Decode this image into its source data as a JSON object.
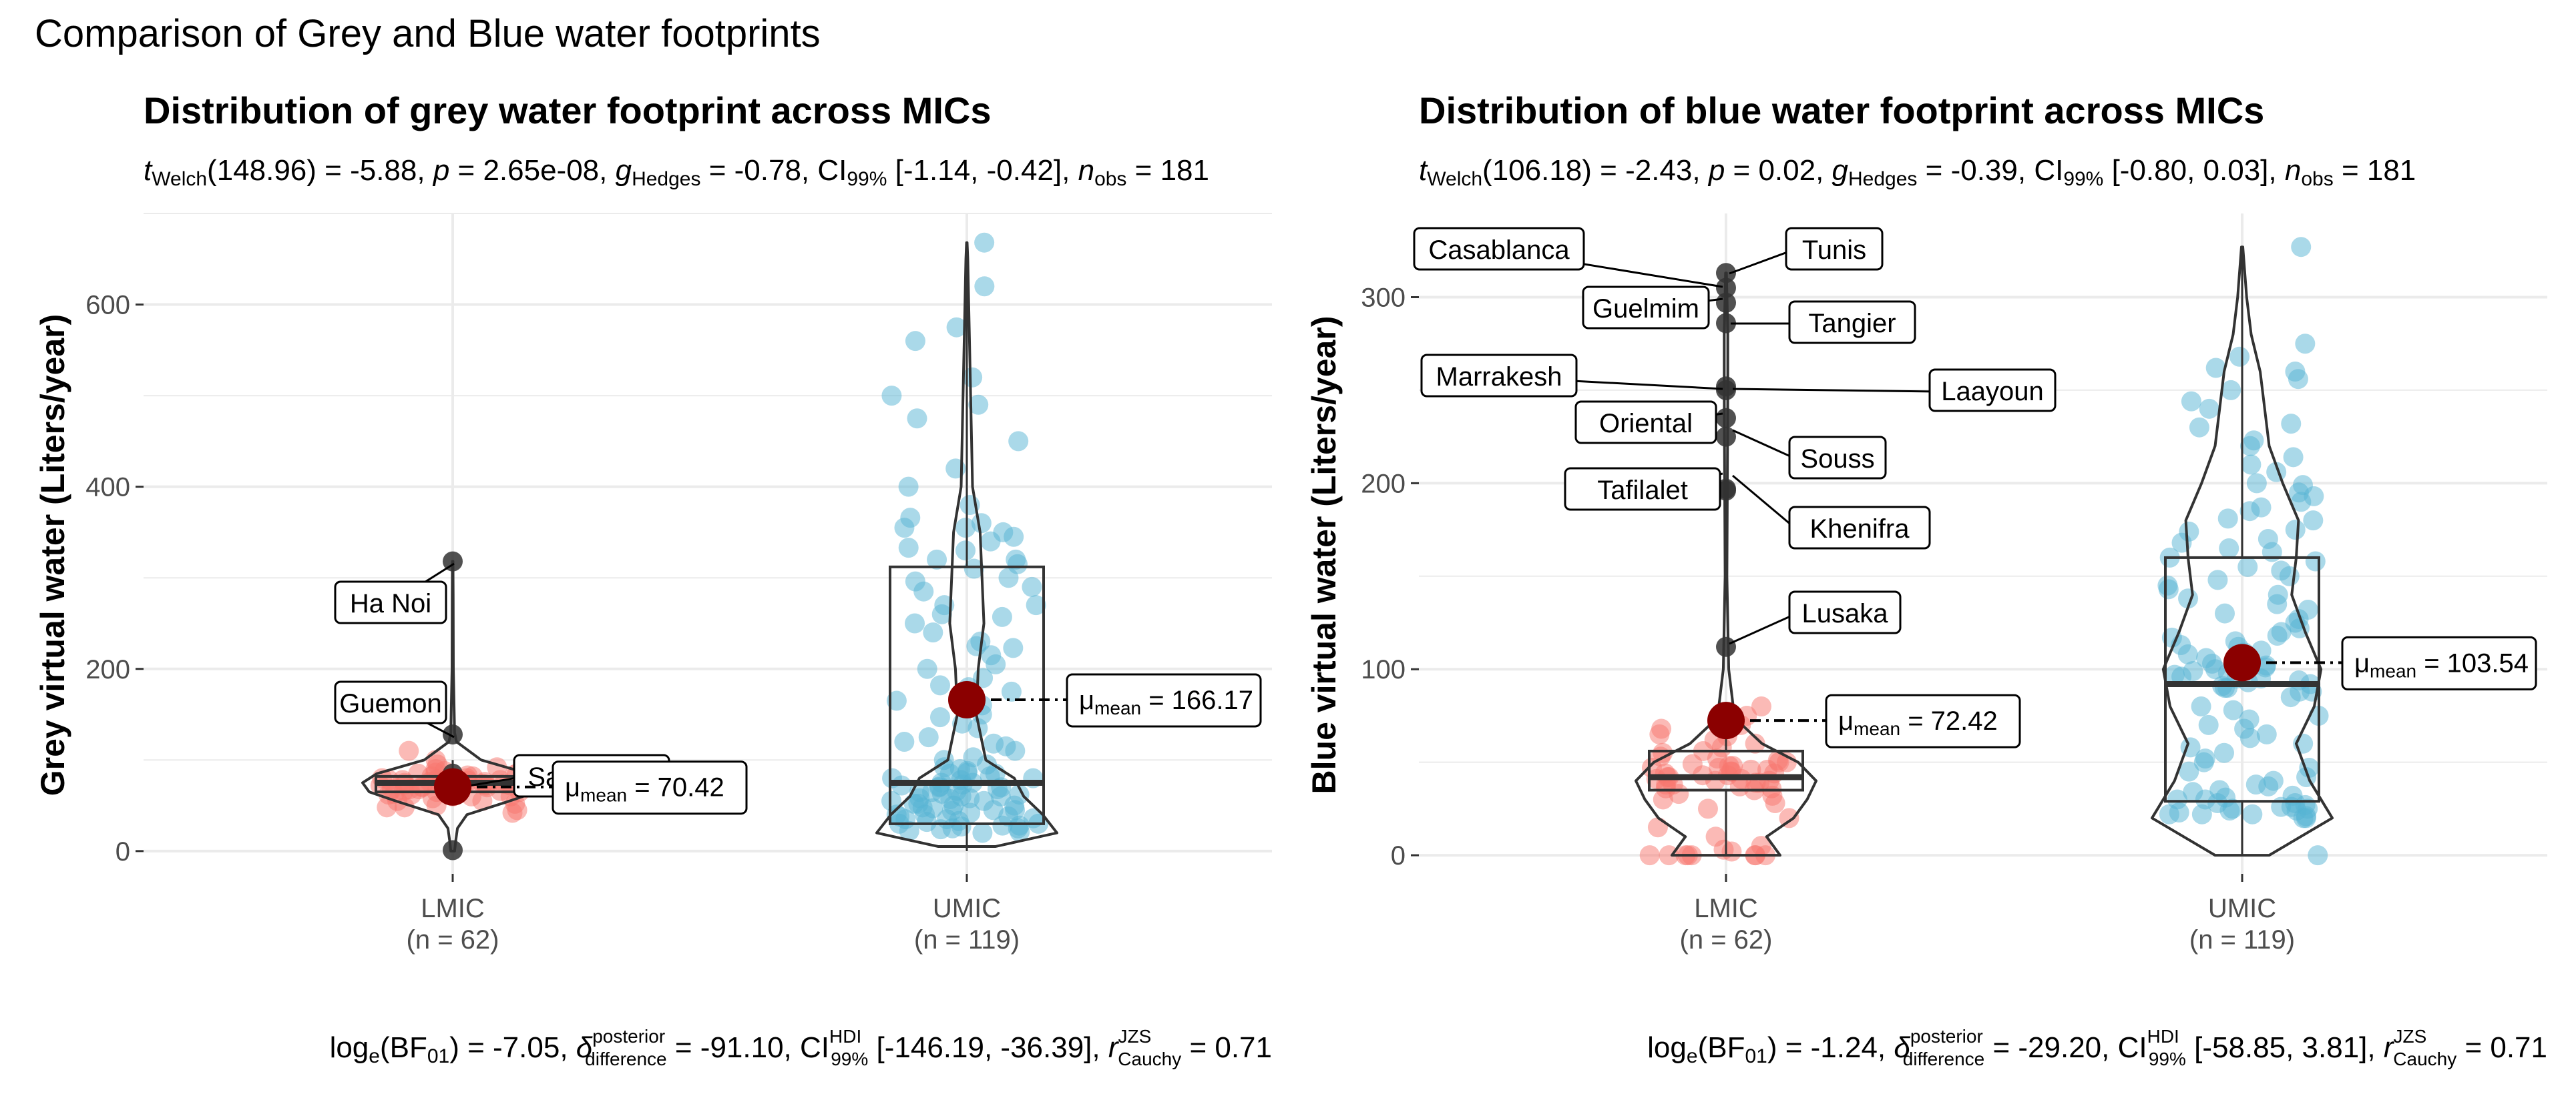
{
  "figure": {
    "title": "Comparison of Grey and Blue water footprints"
  },
  "chart_data": [
    {
      "type": "violin",
      "title": "Distribution of grey water footprint across MICs",
      "subtitle": {
        "t_sub": "Welch",
        "t_val": "(148.96) = -5.88, ",
        "p_label": "p",
        "p_val": " = 2.65e-08, ",
        "g_sub": "Hedges",
        "g_val": " = -0.78, ",
        "ci_label": "CI",
        "ci_sub": "99%",
        "ci_val": " [-1.14, -0.42], ",
        "n_label": "n",
        "n_sub": "obs",
        "n_val": " = 181"
      },
      "ylabel": "Grey virtual water (Liters/year)",
      "ylim": [
        -25,
        700
      ],
      "yticks": [
        "0",
        "200",
        "400",
        "600"
      ],
      "ytick_values": [
        0,
        200,
        400,
        600
      ],
      "categories": [
        "LMIC",
        "UMIC"
      ],
      "n_labels": [
        "(n = 62)",
        "(n = 119)"
      ],
      "colors": [
        "#F8766D",
        "#56B4D3"
      ],
      "groups": [
        {
          "name": "LMIC",
          "mean": 70.42,
          "mean_label": " = 70.42",
          "q1": 65,
          "median": 75,
          "q3": 82,
          "whisker_low": 50,
          "whisker_high": 100,
          "points": [
            42,
            45,
            48,
            50,
            52,
            55,
            58,
            60,
            60,
            62,
            63,
            65,
            65,
            66,
            67,
            68,
            68,
            70,
            70,
            71,
            72,
            72,
            73,
            74,
            74,
            75,
            75,
            76,
            76,
            77,
            78,
            78,
            79,
            80,
            80,
            82,
            82,
            83,
            84,
            85,
            86,
            88,
            90,
            92,
            95,
            100,
            110,
            48,
            55,
            62,
            68,
            72,
            78,
            85,
            60,
            66,
            74,
            80,
            64,
            70
          ],
          "violin": [
            [
              0,
              2
            ],
            [
              10,
              3
            ],
            [
              25,
              5
            ],
            [
              40,
              15
            ],
            [
              55,
              60
            ],
            [
              65,
              88
            ],
            [
              75,
              95
            ],
            [
              85,
              80
            ],
            [
              100,
              30
            ],
            [
              120,
              4
            ],
            [
              130,
              2
            ],
            [
              200,
              0.7
            ],
            [
              280,
              0.5
            ],
            [
              318,
              0.3
            ]
          ],
          "outliers": [
            {
              "y": 318,
              "label": "Ha Noi"
            },
            {
              "y": 128,
              "label": "Guemon"
            },
            {
              "y": 85,
              "label": "San-Pedro"
            },
            {
              "y": 1,
              "label": ""
            }
          ]
        },
        {
          "name": "UMIC",
          "mean": 166.17,
          "mean_label": " = 166.17",
          "q1": 30,
          "median": 75,
          "q3": 312,
          "whisker_low": 0,
          "whisker_high": 668,
          "points": [
            22,
            25,
            28,
            30,
            32,
            35,
            38,
            40,
            42,
            45,
            48,
            50,
            52,
            55,
            58,
            60,
            62,
            65,
            68,
            70,
            72,
            75,
            78,
            80,
            82,
            85,
            88,
            90,
            25,
            30,
            35,
            40,
            45,
            50,
            55,
            60,
            65,
            70,
            75,
            80,
            20,
            28,
            33,
            38,
            44,
            52,
            58,
            66,
            73,
            85,
            100,
            110,
            120,
            135,
            150,
            165,
            180,
            200,
            215,
            230,
            250,
            270,
            285,
            300,
            310,
            320,
            330,
            340,
            345,
            350,
            355,
            360,
            290,
            240,
            190,
            140,
            95,
            125,
            175,
            225,
            270,
            320,
            355,
            400,
            420,
            450,
            475,
            490,
            500,
            520,
            560,
            575,
            620,
            668,
            380,
            315,
            260,
            205,
            160,
            115,
            92,
            63,
            47,
            36,
            27,
            24,
            21,
            57,
            71,
            86,
            103,
            118,
            147,
            182,
            223,
            257,
            296,
            333,
            366
          ],
          "violin": [
            [
              5,
              30
            ],
            [
              20,
              95
            ],
            [
              40,
              80
            ],
            [
              60,
              60
            ],
            [
              80,
              50
            ],
            [
              100,
              20
            ],
            [
              150,
              10
            ],
            [
              200,
              12
            ],
            [
              250,
              18
            ],
            [
              300,
              16
            ],
            [
              350,
              14
            ],
            [
              400,
              6
            ],
            [
              450,
              5
            ],
            [
              500,
              4
            ],
            [
              550,
              3
            ],
            [
              600,
              2
            ],
            [
              650,
              1
            ],
            [
              668,
              0.3
            ]
          ],
          "outliers": []
        }
      ],
      "caption": {
        "log_a": "log",
        "log_sub": "e",
        "log_b": "(BF",
        "log_sub2": "01",
        "log_c": ") = -7.05, ",
        "delta_sup": "posterior",
        "delta_sub": "difference",
        "delta_val": " = -91.10, ",
        "ci_label": "CI",
        "ci_sup": "HDI",
        "ci_sub": "99%",
        "ci_val": " [-146.19, -36.39], ",
        "r_label": "r",
        "r_sup": "JZS",
        "r_sub": "Cauchy",
        "r_val": " = 0.71"
      }
    },
    {
      "type": "violin",
      "title": "Distribution of blue water footprint across MICs",
      "subtitle": {
        "t_sub": "Welch",
        "t_val": "(106.18) = -2.43, ",
        "p_label": "p",
        "p_val": " = 0.02, ",
        "g_sub": "Hedges",
        "g_val": " = -0.39, ",
        "ci_label": "CI",
        "ci_sub": "99%",
        "ci_val": " [-0.80, 0.03], ",
        "n_label": "n",
        "n_sub": "obs",
        "n_val": " = 181"
      },
      "ylabel": "Blue virtual water (Liters/year)",
      "ylim": [
        -10,
        345
      ],
      "yticks": [
        "0",
        "100",
        "200",
        "300"
      ],
      "ytick_values": [
        0,
        100,
        200,
        300
      ],
      "categories": [
        "LMIC",
        "UMIC"
      ],
      "n_labels": [
        "(n = 62)",
        "(n = 119)"
      ],
      "colors": [
        "#F8766D",
        "#56B4D3"
      ],
      "groups": [
        {
          "name": "LMIC",
          "mean": 72.42,
          "mean_label": " = 72.42",
          "q1": 35,
          "median": 42,
          "q3": 56,
          "whisker_low": 0,
          "whisker_high": 80,
          "points": [
            0,
            0,
            0,
            0,
            0,
            0,
            0,
            0,
            2,
            3,
            5,
            10,
            15,
            20,
            25,
            28,
            30,
            32,
            33,
            35,
            36,
            37,
            38,
            39,
            40,
            40,
            41,
            42,
            42,
            43,
            44,
            45,
            45,
            46,
            47,
            48,
            48,
            49,
            50,
            50,
            52,
            53,
            55,
            56,
            58,
            60,
            62,
            64,
            65,
            68,
            70,
            75,
            80,
            38,
            44,
            36,
            41,
            47,
            39,
            43,
            46,
            51
          ],
          "violin": [
            [
              0,
              60
            ],
            [
              10,
              45
            ],
            [
              20,
              75
            ],
            [
              30,
              90
            ],
            [
              40,
              100
            ],
            [
              50,
              80
            ],
            [
              60,
              40
            ],
            [
              70,
              18
            ],
            [
              80,
              8
            ],
            [
              100,
              3
            ],
            [
              150,
              1
            ],
            [
              200,
              1.5
            ],
            [
              250,
              2
            ],
            [
              280,
              2
            ],
            [
              313,
              0.5
            ]
          ],
          "outliers": [
            {
              "y": 313,
              "label": "Tunis"
            },
            {
              "y": 305,
              "label": "Casablanca"
            },
            {
              "y": 297,
              "label": "Guelmim"
            },
            {
              "y": 286,
              "label": "Tangier"
            },
            {
              "y": 252,
              "label": "Marrakesh"
            },
            {
              "y": 250,
              "label": "Laayoun"
            },
            {
              "y": 235,
              "label": "Oriental"
            },
            {
              "y": 225,
              "label": "Souss"
            },
            {
              "y": 197,
              "label": "Tafilalet"
            },
            {
              "y": 196,
              "label": "Khenifra"
            },
            {
              "y": 112,
              "label": "Lusaka"
            }
          ]
        },
        {
          "name": "UMIC",
          "mean": 103.54,
          "mean_label": " = 103.54",
          "q1": 29,
          "median": 92,
          "q3": 160,
          "whisker_low": 0,
          "whisker_high": 327,
          "points": [
            0,
            20,
            20,
            21,
            22,
            22,
            23,
            24,
            25,
            25,
            26,
            27,
            28,
            28,
            30,
            30,
            32,
            35,
            38,
            40,
            45,
            50,
            55,
            60,
            65,
            70,
            75,
            80,
            85,
            88,
            90,
            90,
            92,
            93,
            95,
            95,
            96,
            98,
            100,
            100,
            102,
            105,
            108,
            110,
            112,
            115,
            118,
            120,
            125,
            130,
            135,
            140,
            145,
            150,
            155,
            160,
            165,
            170,
            175,
            180,
            185,
            190,
            195,
            200,
            210,
            220,
            230,
            240,
            250,
            260,
            268,
            275,
            327,
            22,
            24,
            26,
            88,
            91,
            94,
            97,
            99,
            101,
            103,
            106,
            109,
            113,
            117,
            122,
            127,
            132,
            138,
            143,
            148,
            153,
            158,
            163,
            168,
            174,
            181,
            187,
            193,
            199,
            206,
            214,
            223,
            232,
            244,
            256,
            262,
            31,
            34,
            37,
            42,
            47,
            52,
            58,
            63,
            68,
            73,
            78
          ],
          "violin": [
            [
              0,
              12
            ],
            [
              20,
              40
            ],
            [
              40,
              30
            ],
            [
              60,
              24
            ],
            [
              80,
              32
            ],
            [
              100,
              35
            ],
            [
              120,
              28
            ],
            [
              140,
              22
            ],
            [
              160,
              24
            ],
            [
              180,
              25
            ],
            [
              200,
              18
            ],
            [
              220,
              12
            ],
            [
              240,
              10
            ],
            [
              260,
              8
            ],
            [
              280,
              4
            ],
            [
              300,
              2
            ],
            [
              327,
              0.3
            ]
          ],
          "outliers": []
        }
      ],
      "caption": {
        "log_a": "log",
        "log_sub": "e",
        "log_b": "(BF",
        "log_sub2": "01",
        "log_c": ") = -1.24, ",
        "delta_sup": "posterior",
        "delta_sub": "difference",
        "delta_val": " = -29.20, ",
        "ci_label": "CI",
        "ci_sup": "HDI",
        "ci_sub": "99%",
        "ci_val": " [-58.85, 3.81], ",
        "r_label": "r",
        "r_sup": "JZS",
        "r_sub": "Cauchy",
        "r_val": " = 0.71"
      }
    }
  ],
  "mean_symbol": "μ",
  "mean_sub": "mean",
  "t_label": "t",
  "g_label": "g",
  "delta_label": "δ"
}
